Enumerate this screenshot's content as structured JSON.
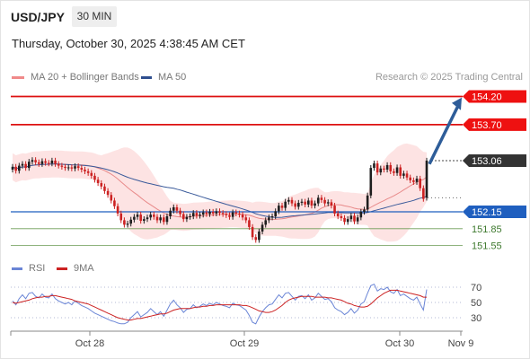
{
  "header": {
    "symbol": "USD/JPY",
    "timeframe": "30 MIN",
    "timestamp": "Thursday, October 30, 2025 4:38:45 AM CET"
  },
  "legend": {
    "ma_label": "MA 20 + Bollinger Bands",
    "ma50_label": "MA 50",
    "source": "Research © 2025 Trading Central",
    "rsi_label": "RSI",
    "rsi_ma_label": "9MA"
  },
  "colors": {
    "bull": "#1e1e1e",
    "bear": "#cc2222",
    "ma20": "#e88a8a",
    "ma50": "#3a5a9a",
    "bands": "#fde0e0",
    "resistance": "#dd1111",
    "pivot": "#1f5fbf",
    "support": "#6b9c55",
    "arrow": "#2e5d99",
    "rsi": "#6a85d6",
    "rsi_ma": "#cc2222"
  },
  "chart_data": {
    "type": "candlestick",
    "title": "USD/JPY",
    "x_ticks": [
      "Oct 28",
      "Oct 29",
      "Oct 30",
      "Nov 9"
    ],
    "ylim": [
      151.2,
      154.4
    ],
    "current_price": {
      "value": 153.06,
      "label": "153.06"
    },
    "levels": [
      {
        "kind": "resistance",
        "value": 154.2,
        "label": "154.20"
      },
      {
        "kind": "resistance",
        "value": 153.7,
        "label": "153.70"
      },
      {
        "kind": "pivot",
        "value": 152.15,
        "label": "152.15"
      },
      {
        "kind": "support",
        "value": 151.85,
        "label": "151.85"
      },
      {
        "kind": "support",
        "value": 151.55,
        "label": "151.55"
      }
    ],
    "projection": {
      "from": 153.0,
      "to": 154.18
    },
    "close": [
      152.95,
      152.88,
      152.97,
      153.0,
      152.93,
      153.04,
      153.07,
      153.03,
      153.0,
      153.05,
      153.02,
      153.01,
      153.06,
      153.0,
      152.97,
      152.95,
      152.93,
      152.94,
      152.92,
      152.96,
      152.93,
      152.9,
      152.87,
      152.84,
      152.79,
      152.72,
      152.66,
      152.6,
      152.52,
      152.45,
      152.35,
      152.25,
      152.12,
      152.0,
      151.92,
      151.94,
      152.01,
      152.06,
      152.1,
      151.99,
      152.02,
      152.05,
      152.1,
      152.06,
      152.0,
      152.05,
      151.97,
      152.07,
      152.17,
      152.23,
      152.17,
      152.11,
      152.02,
      152.06,
      152.07,
      152.13,
      152.08,
      152.1,
      152.14,
      152.11,
      152.15,
      152.12,
      152.16,
      152.13,
      152.11,
      152.09,
      152.06,
      152.14,
      152.12,
      152.1,
      152.05,
      152.0,
      151.88,
      151.7,
      151.65,
      151.8,
      151.92,
      152.0,
      152.05,
      152.07,
      152.16,
      152.26,
      152.22,
      152.33,
      152.36,
      152.3,
      152.24,
      152.31,
      152.33,
      152.28,
      152.35,
      152.26,
      152.3,
      152.4,
      152.36,
      152.3,
      152.32,
      152.26,
      152.12,
      152.07,
      152.04,
      151.97,
      152.02,
      152.08,
      151.98,
      152.05,
      152.15,
      152.19,
      152.44,
      152.93,
      153.01,
      152.85,
      152.92,
      152.9,
      152.98,
      152.87,
      152.84,
      152.94,
      152.79,
      152.83,
      152.76,
      152.71,
      152.68,
      152.74,
      152.57,
      152.38,
      153.06
    ],
    "open": [
      152.9,
      152.95,
      152.88,
      152.97,
      153.0,
      152.93,
      153.04,
      153.07,
      153.03,
      153.0,
      153.05,
      153.02,
      153.01,
      153.06,
      153.0,
      152.97,
      152.95,
      152.93,
      152.94,
      152.92,
      152.96,
      152.93,
      152.9,
      152.87,
      152.84,
      152.79,
      152.72,
      152.66,
      152.6,
      152.52,
      152.45,
      152.35,
      152.25,
      152.12,
      152.0,
      151.92,
      151.94,
      152.01,
      152.06,
      152.1,
      151.99,
      152.02,
      152.05,
      152.1,
      152.06,
      152.0,
      152.05,
      151.97,
      152.07,
      152.17,
      152.23,
      152.17,
      152.11,
      152.02,
      152.06,
      152.07,
      152.13,
      152.08,
      152.1,
      152.14,
      152.11,
      152.15,
      152.12,
      152.16,
      152.13,
      152.11,
      152.09,
      152.06,
      152.14,
      152.12,
      152.1,
      152.05,
      152.0,
      151.88,
      151.7,
      151.65,
      151.8,
      151.92,
      152.0,
      152.05,
      152.07,
      152.16,
      152.26,
      152.22,
      152.33,
      152.36,
      152.3,
      152.24,
      152.31,
      152.33,
      152.28,
      152.35,
      152.26,
      152.3,
      152.4,
      152.36,
      152.3,
      152.32,
      152.26,
      152.12,
      152.07,
      152.04,
      151.97,
      152.02,
      152.08,
      151.98,
      152.05,
      152.15,
      152.19,
      152.44,
      152.93,
      153.01,
      152.85,
      152.92,
      152.9,
      152.98,
      152.87,
      152.84,
      152.94,
      152.79,
      152.83,
      152.76,
      152.71,
      152.68,
      152.74,
      152.57,
      152.4
    ],
    "rsi": [
      52,
      47,
      55,
      60,
      55,
      62,
      63,
      58,
      56,
      61,
      57,
      56,
      61,
      55,
      52,
      50,
      48,
      50,
      47,
      52,
      49,
      46,
      44,
      42,
      39,
      36,
      34,
      32,
      30,
      28,
      26,
      25,
      23,
      22,
      22,
      24,
      30,
      34,
      38,
      31,
      34,
      37,
      42,
      38,
      34,
      38,
      32,
      40,
      48,
      53,
      47,
      43,
      37,
      41,
      42,
      47,
      43,
      45,
      48,
      46,
      49,
      47,
      50,
      48,
      46,
      45,
      43,
      49,
      47,
      46,
      43,
      40,
      33,
      24,
      22,
      31,
      38,
      43,
      47,
      48,
      54,
      60,
      56,
      62,
      63,
      58,
      53,
      58,
      59,
      55,
      60,
      53,
      56,
      62,
      58,
      54,
      55,
      51,
      43,
      40,
      38,
      34,
      37,
      42,
      36,
      40,
      48,
      51,
      62,
      72,
      74,
      65,
      68,
      67,
      70,
      64,
      62,
      67,
      59,
      61,
      58,
      55,
      53,
      57,
      48,
      40,
      67
    ],
    "rsi_ma": [
      50,
      49,
      50,
      51,
      52,
      53,
      55,
      56,
      57,
      57,
      58,
      58,
      59,
      59,
      58,
      57,
      56,
      55,
      54,
      52,
      51,
      50,
      49,
      48,
      46,
      44,
      42,
      40,
      38,
      36,
      34,
      32,
      30,
      29,
      28,
      27,
      27,
      28,
      29,
      29,
      30,
      31,
      32,
      33,
      34,
      35,
      35,
      36,
      38,
      40,
      41,
      42,
      42,
      42,
      42,
      43,
      44,
      44,
      45,
      45,
      46,
      46,
      47,
      47,
      47,
      47,
      47,
      47,
      47,
      47,
      46,
      46,
      45,
      43,
      41,
      39,
      38,
      37,
      37,
      38,
      40,
      43,
      46,
      50,
      53,
      55,
      56,
      57,
      58,
      58,
      58,
      58,
      57,
      57,
      57,
      57,
      56,
      56,
      55,
      54,
      53,
      51,
      49,
      48,
      46,
      45,
      44,
      44,
      45,
      48,
      52,
      56,
      59,
      62,
      64,
      66,
      66,
      66,
      65,
      64,
      63,
      62,
      61,
      60,
      59,
      57,
      57
    ],
    "rsi_levels": [
      70,
      50,
      30
    ]
  }
}
